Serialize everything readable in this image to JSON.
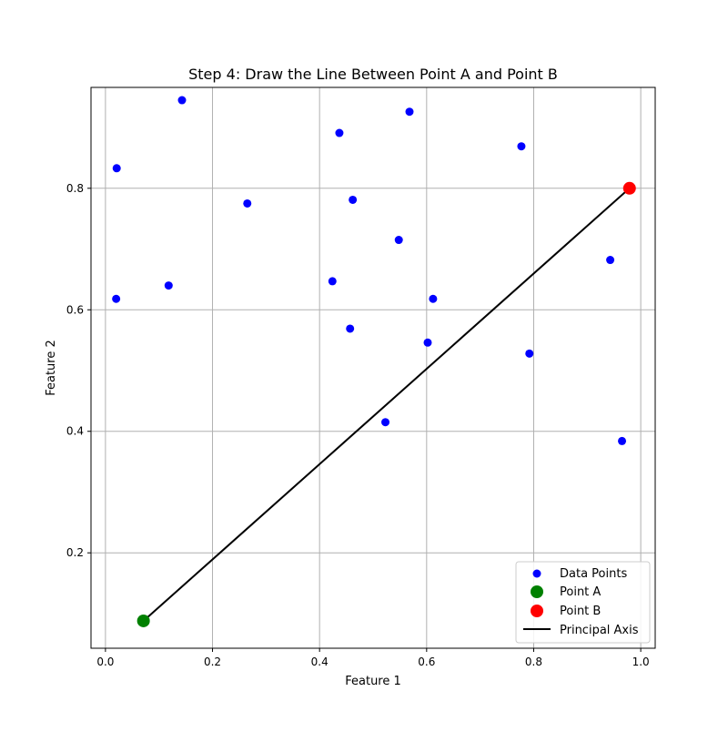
{
  "chart_data": {
    "type": "scatter",
    "title": "Step 4: Draw the Line Between Point A and Point B",
    "xlabel": "Feature 1",
    "ylabel": "Feature 2",
    "xlim": [
      -0.027,
      1.027
    ],
    "ylim": [
      0.043,
      0.966
    ],
    "grid": true,
    "legend_position": "lower-right",
    "x_ticks": [
      0.0,
      0.2,
      0.4,
      0.6,
      0.8,
      1.0
    ],
    "x_tick_labels": [
      "0.0",
      "0.2",
      "0.4",
      "0.6",
      "0.8",
      "1.0"
    ],
    "y_ticks": [
      0.2,
      0.4,
      0.6,
      0.8
    ],
    "y_tick_labels": [
      "0.2",
      "0.4",
      "0.6",
      "0.8"
    ],
    "series": [
      {
        "name": "Data Points",
        "kind": "scatter",
        "color": "#0000ff",
        "x": [
          0.143,
          0.021,
          0.437,
          0.568,
          0.777,
          0.265,
          0.462,
          0.548,
          0.118,
          0.02,
          0.424,
          0.612,
          0.457,
          0.602,
          0.792,
          0.523,
          0.943,
          0.965
        ],
        "y": [
          0.945,
          0.833,
          0.891,
          0.926,
          0.869,
          0.775,
          0.781,
          0.715,
          0.64,
          0.618,
          0.647,
          0.618,
          0.569,
          0.546,
          0.528,
          0.415,
          0.682,
          0.384
        ]
      },
      {
        "name": "Point A",
        "kind": "scatter",
        "color": "#008000",
        "x": [
          0.071
        ],
        "y": [
          0.088
        ]
      },
      {
        "name": "Point B",
        "kind": "scatter",
        "color": "#ff0000",
        "x": [
          0.979
        ],
        "y": [
          0.8
        ]
      },
      {
        "name": "Principal Axis",
        "kind": "line",
        "color": "#000000",
        "x": [
          0.071,
          0.979
        ],
        "y": [
          0.088,
          0.8
        ]
      }
    ]
  }
}
